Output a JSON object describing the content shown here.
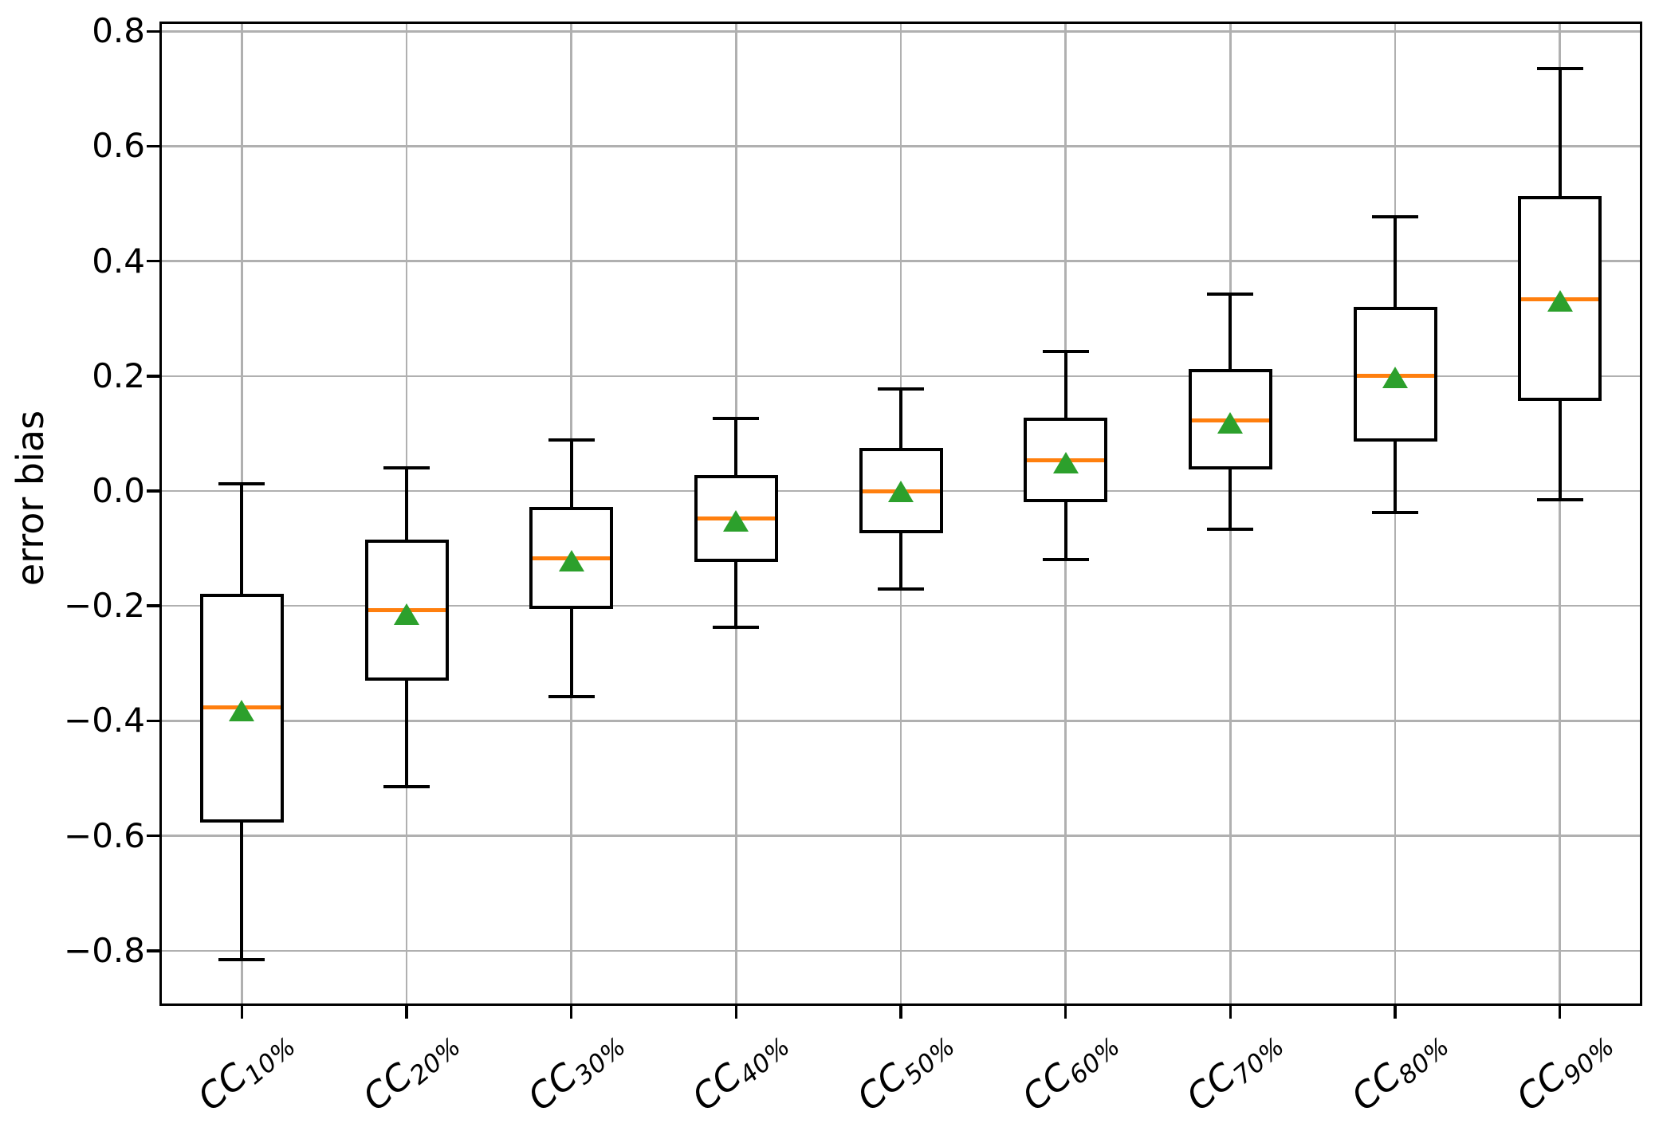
{
  "chart_data": {
    "type": "boxplot",
    "title": "",
    "xlabel": "",
    "ylabel": "error bias",
    "ylim": [
      -0.896,
      0.817
    ],
    "yticks": {
      "values": [
        0.8,
        0.6,
        0.4,
        0.2,
        0.0,
        -0.2,
        -0.4,
        -0.6,
        -0.8
      ],
      "labels": [
        "0.8",
        "0.6",
        "0.4",
        "0.2",
        "0.0",
        "−0.2",
        "−0.4",
        "−0.6",
        "−0.8"
      ]
    },
    "grid": true,
    "legend": false,
    "categories": [
      {
        "prefix": "CC",
        "subscript": "10%"
      },
      {
        "prefix": "CC",
        "subscript": "20%"
      },
      {
        "prefix": "CC",
        "subscript": "30%"
      },
      {
        "prefix": "CC",
        "subscript": "40%"
      },
      {
        "prefix": "CC",
        "subscript": "50%"
      },
      {
        "prefix": "CC",
        "subscript": "60%"
      },
      {
        "prefix": "CC",
        "subscript": "70%"
      },
      {
        "prefix": "CC",
        "subscript": "80%"
      },
      {
        "prefix": "CC",
        "subscript": "90%"
      }
    ],
    "series": [
      {
        "label": "CC10%",
        "whisker_low": -0.815,
        "q1": -0.577,
        "median": -0.377,
        "mean": -0.382,
        "q3": -0.179,
        "whisker_high": 0.013
      },
      {
        "label": "CC20%",
        "whisker_low": -0.515,
        "q1": -0.33,
        "median": -0.207,
        "mean": -0.213,
        "q3": -0.085,
        "whisker_high": 0.04
      },
      {
        "label": "CC30%",
        "whisker_low": -0.358,
        "q1": -0.205,
        "median": -0.117,
        "mean": -0.121,
        "q3": -0.028,
        "whisker_high": 0.089
      },
      {
        "label": "CC40%",
        "whisker_low": -0.237,
        "q1": -0.123,
        "median": -0.048,
        "mean": -0.051,
        "q3": 0.028,
        "whisker_high": 0.126
      },
      {
        "label": "CC50%",
        "whisker_low": -0.171,
        "q1": -0.073,
        "median": 0.0,
        "mean": 0.0,
        "q3": 0.075,
        "whisker_high": 0.177
      },
      {
        "label": "CC60%",
        "whisker_low": -0.119,
        "q1": -0.02,
        "median": 0.053,
        "mean": 0.05,
        "q3": 0.128,
        "whisker_high": 0.243
      },
      {
        "label": "CC70%",
        "whisker_low": -0.067,
        "q1": 0.037,
        "median": 0.123,
        "mean": 0.12,
        "q3": 0.212,
        "whisker_high": 0.343
      },
      {
        "label": "CC80%",
        "whisker_low": -0.037,
        "q1": 0.086,
        "median": 0.2,
        "mean": 0.198,
        "q3": 0.32,
        "whisker_high": 0.477
      },
      {
        "label": "CC90%",
        "whisker_low": -0.015,
        "q1": 0.157,
        "median": 0.334,
        "mean": 0.332,
        "q3": 0.513,
        "whisker_high": 0.735
      }
    ],
    "colors": {
      "median": "#ff7f0e",
      "mean": "#2ca02c",
      "box": "#000000",
      "grid": "#b0b0b0",
      "background": "#ffffff"
    }
  }
}
